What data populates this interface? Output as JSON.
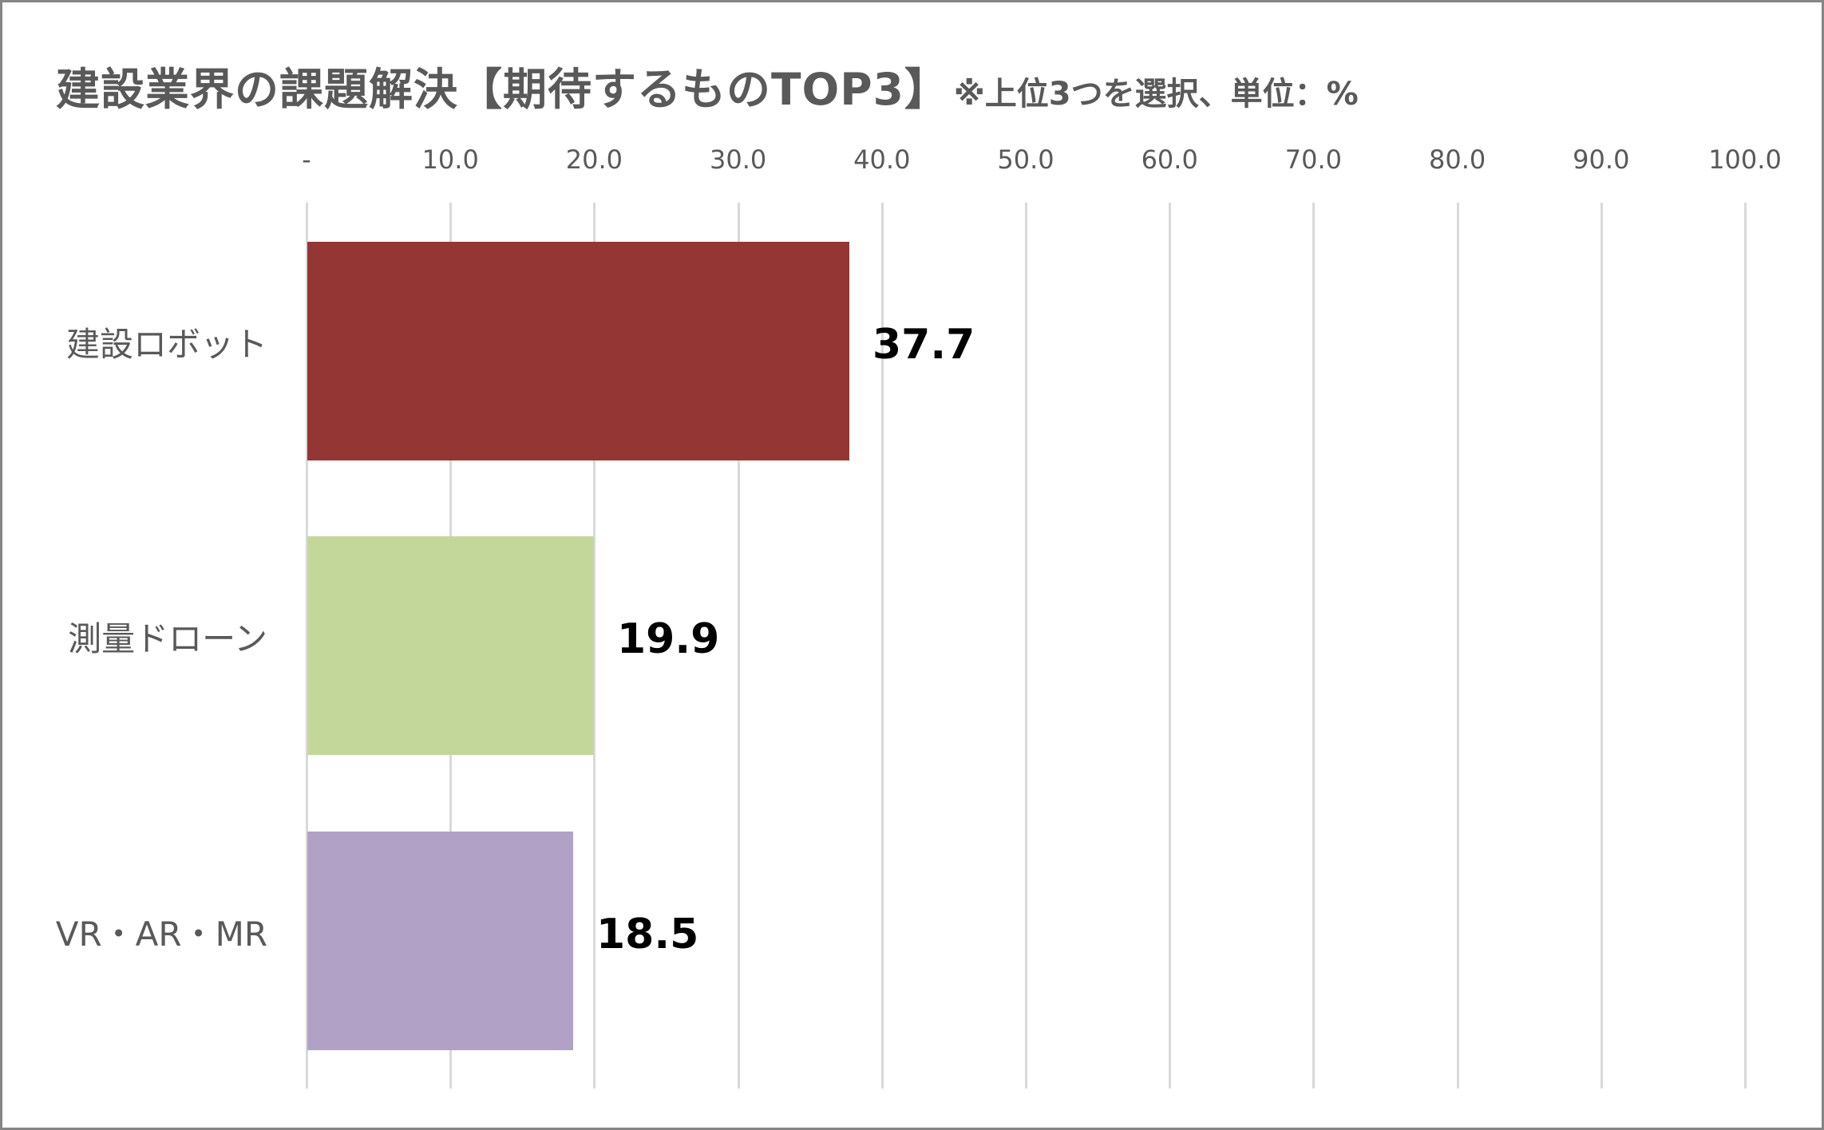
{
  "title": {
    "main": "建設業界の課題解決【期待するものTOP3】",
    "note": "※上位3つを選択、単位：%"
  },
  "axis": {
    "ticks": [
      "-",
      "10.0",
      "20.0",
      "30.0",
      "40.0",
      "50.0",
      "60.0",
      "70.0",
      "80.0",
      "90.0",
      "100.0"
    ]
  },
  "colors": {
    "bar_1": "#943634",
    "bar_2": "#c4d79b",
    "bar_3": "#b2a1c7",
    "gridline": "#d9d9d9",
    "text": "#595959",
    "label": "#000000"
  },
  "chart_data": {
    "type": "bar",
    "orientation": "horizontal",
    "title": "建設業界の課題解決【期待するものTOP3】※上位3つを選択、単位：%",
    "categories": [
      "建設ロボット",
      "測量ドローン",
      "VR・AR・MR"
    ],
    "values": [
      37.7,
      19.9,
      18.5
    ],
    "value_labels": [
      "37.7",
      "19.9",
      "18.5"
    ],
    "xlabel": "",
    "ylabel": "",
    "xlim": [
      0,
      100
    ],
    "x_ticks": [
      "-",
      "10.0",
      "20.0",
      "30.0",
      "40.0",
      "50.0",
      "60.0",
      "70.0",
      "80.0",
      "90.0",
      "100.0"
    ],
    "x_axis_position": "top",
    "grid": true,
    "legend": "none"
  }
}
